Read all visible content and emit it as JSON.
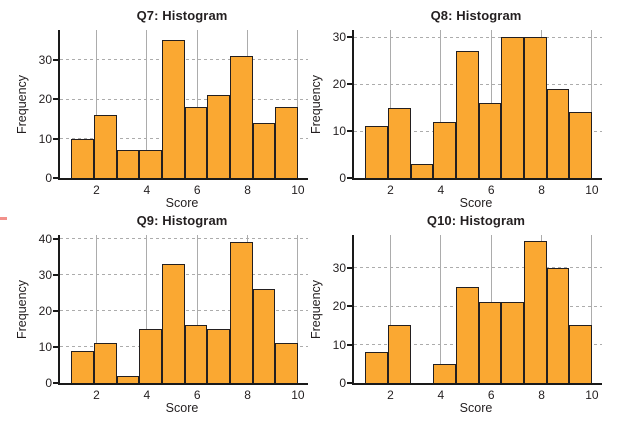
{
  "figure": {
    "background": "#ffffff",
    "artifact": {
      "name": "pink-edge-mark",
      "color": "#f2918b"
    }
  },
  "style": {
    "bar_fill": "#faa832",
    "bar_border": "#231f20",
    "grid_color": "#acacac",
    "axis_color": "#1a1a1a",
    "text_color": "#231f20"
  },
  "chart_data": [
    {
      "type": "bar",
      "subtype": "histogram",
      "title": "Q7: Histogram",
      "xlabel": "Score",
      "ylabel": "Frequency",
      "bin_start": 1,
      "bin_end": 10,
      "values": [
        10,
        16,
        7,
        7,
        35,
        18,
        21,
        31,
        14,
        18
      ],
      "xticks": [
        2,
        4,
        6,
        8,
        10
      ],
      "yticks": [
        0,
        10,
        20,
        30
      ],
      "xlim": [
        0.55,
        10.4
      ],
      "ylim": [
        0,
        37.5
      ],
      "grid": "on",
      "legend": "none"
    },
    {
      "type": "bar",
      "subtype": "histogram",
      "title": "Q8: Histogram",
      "xlabel": "Score",
      "ylabel": "Frequency",
      "bin_start": 1,
      "bin_end": 10,
      "values": [
        11,
        15,
        3,
        12,
        27,
        16,
        30,
        30,
        19,
        14
      ],
      "xticks": [
        2,
        4,
        6,
        8,
        10
      ],
      "yticks": [
        0,
        10,
        20,
        30
      ],
      "xlim": [
        0.55,
        10.4
      ],
      "ylim": [
        0,
        31.5
      ],
      "grid": "on",
      "legend": "none"
    },
    {
      "type": "bar",
      "subtype": "histogram",
      "title": "Q9: Histogram",
      "xlabel": "Score",
      "ylabel": "Frequency",
      "bin_start": 1,
      "bin_end": 10,
      "values": [
        9,
        11,
        2,
        15,
        33,
        16,
        15,
        39,
        26,
        11
      ],
      "xticks": [
        2,
        4,
        6,
        8,
        10
      ],
      "yticks": [
        0,
        10,
        20,
        30,
        40
      ],
      "xlim": [
        0.55,
        10.4
      ],
      "ylim": [
        0,
        41
      ],
      "grid": "on",
      "legend": "none"
    },
    {
      "type": "bar",
      "subtype": "histogram",
      "title": "Q10: Histogram",
      "xlabel": "Score",
      "ylabel": "Frequency",
      "bin_start": 1,
      "bin_end": 10,
      "values": [
        8,
        15,
        0,
        5,
        25,
        21,
        21,
        37,
        30,
        15
      ],
      "xticks": [
        2,
        4,
        6,
        8,
        10
      ],
      "yticks": [
        0,
        10,
        20,
        30
      ],
      "xlim": [
        0.55,
        10.4
      ],
      "ylim": [
        0,
        38.5
      ],
      "grid": "on",
      "legend": "none"
    }
  ]
}
